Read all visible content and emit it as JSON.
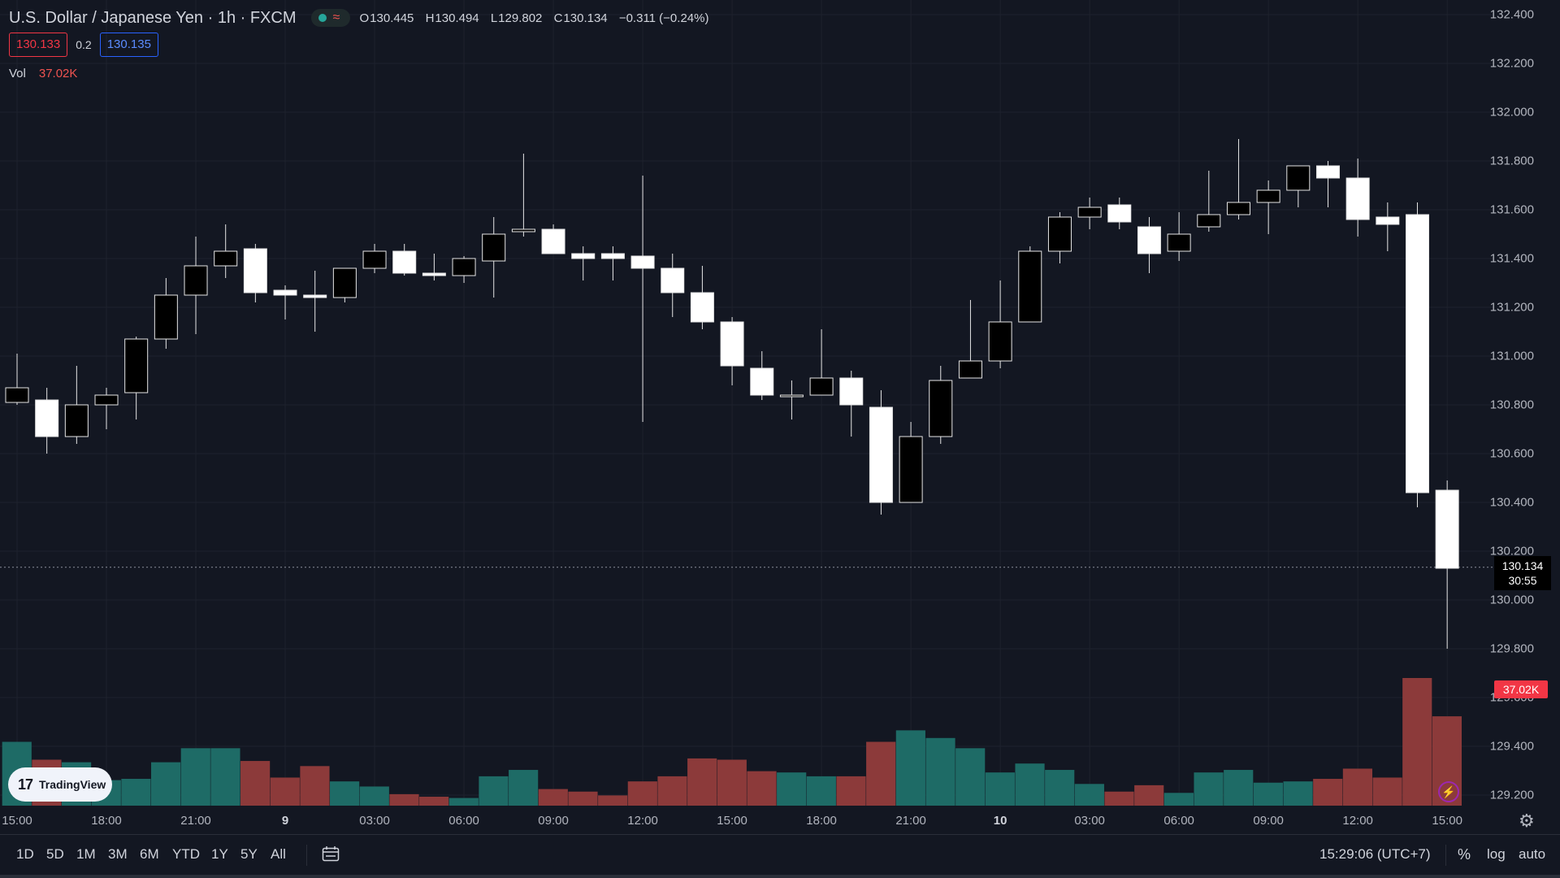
{
  "header": {
    "symbol_title": "U.S. Dollar / Japanese Yen · 1h · FXCM",
    "status_wave_glyph": "≈",
    "ohlc": {
      "o_key": "O",
      "o": "130.445",
      "h_key": "H",
      "h": "130.494",
      "l_key": "L",
      "l": "129.802",
      "c_key": "C",
      "c": "130.134",
      "change": "−0.311 (−0.24%)"
    },
    "sell_price": "130.133",
    "spread": "0.2",
    "buy_price": "130.135",
    "volume_label": "Vol",
    "volume_value": "37.02K"
  },
  "price_axis": {
    "labels": [
      "132.400",
      "132.200",
      "132.000",
      "131.800",
      "131.600",
      "131.400",
      "131.200",
      "131.000",
      "130.800",
      "130.600",
      "130.400",
      "130.200",
      "130.000",
      "129.800",
      "129.600",
      "129.400",
      "129.200"
    ],
    "last_price": "130.134",
    "countdown": "30:55",
    "volume_tag": "37.02K"
  },
  "time_axis": [
    {
      "label": "15:00",
      "bold": false
    },
    {
      "label": "18:00",
      "bold": false
    },
    {
      "label": "21:00",
      "bold": false
    },
    {
      "label": "9",
      "bold": true
    },
    {
      "label": "03:00",
      "bold": false
    },
    {
      "label": "06:00",
      "bold": false
    },
    {
      "label": "09:00",
      "bold": false
    },
    {
      "label": "12:00",
      "bold": false
    },
    {
      "label": "15:00",
      "bold": false
    },
    {
      "label": "18:00",
      "bold": false
    },
    {
      "label": "21:00",
      "bold": false
    },
    {
      "label": "10",
      "bold": true
    },
    {
      "label": "03:00",
      "bold": false
    },
    {
      "label": "06:00",
      "bold": false
    },
    {
      "label": "09:00",
      "bold": false
    },
    {
      "label": "12:00",
      "bold": false
    },
    {
      "label": "15:00",
      "bold": false
    }
  ],
  "bottom_bar": {
    "timeframes": [
      "1D",
      "5D",
      "1M",
      "3M",
      "6M",
      "YTD",
      "1Y",
      "5Y",
      "All"
    ],
    "clock": "15:29:06 (UTC+7)",
    "percent": "%",
    "log": "log",
    "auto": "auto"
  },
  "branding": {
    "mark": "17",
    "word": "TradingView"
  },
  "icons": {
    "calendar": "calendar-range-icon",
    "bolt": "lightning-bolt-icon",
    "gear": "gear-icon"
  },
  "colors": {
    "background": "#131722",
    "candle_up_fill": "#000000",
    "candle_down_fill": "#ffffff",
    "volume_up": "#1e6b66",
    "volume_down": "#8c3a3a",
    "sell": "#f23645",
    "buy": "#2962ff"
  },
  "chart_data": {
    "type": "candlestick",
    "title": "U.S. Dollar / Japanese Yen · 1h · FXCM",
    "ylim": [
      129.13,
      132.44
    ],
    "y_ticks": [
      132.4,
      132.2,
      132.0,
      131.8,
      131.6,
      131.4,
      131.2,
      131.0,
      130.8,
      130.6,
      130.4,
      130.2,
      130.0,
      129.8,
      129.6,
      129.4,
      129.2
    ],
    "x_ticks": [
      "15:00",
      "18:00",
      "21:00",
      "9",
      "03:00",
      "06:00",
      "09:00",
      "12:00",
      "15:00",
      "18:00",
      "21:00",
      "10",
      "03:00",
      "06:00",
      "09:00",
      "12:00",
      "15:00"
    ],
    "grid": true,
    "volume_max_k": 105,
    "candles": [
      {
        "o": 130.81,
        "h": 131.01,
        "l": 130.8,
        "c": 130.87,
        "v": 50
      },
      {
        "o": 130.82,
        "h": 130.87,
        "l": 130.6,
        "c": 130.67,
        "v": 36
      },
      {
        "o": 130.67,
        "h": 130.96,
        "l": 130.64,
        "c": 130.8,
        "v": 34
      },
      {
        "o": 130.8,
        "h": 130.87,
        "l": 130.7,
        "c": 130.84,
        "v": 20
      },
      {
        "o": 130.85,
        "h": 131.08,
        "l": 130.74,
        "c": 131.07,
        "v": 21
      },
      {
        "o": 131.07,
        "h": 131.32,
        "l": 131.03,
        "c": 131.25,
        "v": 34
      },
      {
        "o": 131.25,
        "h": 131.49,
        "l": 131.09,
        "c": 131.37,
        "v": 45
      },
      {
        "o": 131.37,
        "h": 131.54,
        "l": 131.32,
        "c": 131.43,
        "v": 45
      },
      {
        "o": 131.44,
        "h": 131.46,
        "l": 131.22,
        "c": 131.26,
        "v": 35
      },
      {
        "o": 131.27,
        "h": 131.29,
        "l": 131.15,
        "c": 131.25,
        "v": 22
      },
      {
        "o": 131.25,
        "h": 131.35,
        "l": 131.1,
        "c": 131.24,
        "v": 31
      },
      {
        "o": 131.24,
        "h": 131.36,
        "l": 131.22,
        "c": 131.36,
        "v": 19
      },
      {
        "o": 131.36,
        "h": 131.46,
        "l": 131.34,
        "c": 131.43,
        "v": 15
      },
      {
        "o": 131.43,
        "h": 131.46,
        "l": 131.33,
        "c": 131.34,
        "v": 9
      },
      {
        "o": 131.34,
        "h": 131.42,
        "l": 131.31,
        "c": 131.33,
        "v": 7
      },
      {
        "o": 131.33,
        "h": 131.41,
        "l": 131.3,
        "c": 131.4,
        "v": 6
      },
      {
        "o": 131.39,
        "h": 131.57,
        "l": 131.24,
        "c": 131.5,
        "v": 23
      },
      {
        "o": 131.51,
        "h": 131.83,
        "l": 131.49,
        "c": 131.52,
        "v": 28
      },
      {
        "o": 131.52,
        "h": 131.54,
        "l": 131.43,
        "c": 131.42,
        "v": 13
      },
      {
        "o": 131.42,
        "h": 131.45,
        "l": 131.31,
        "c": 131.4,
        "v": 11
      },
      {
        "o": 131.42,
        "h": 131.45,
        "l": 131.31,
        "c": 131.4,
        "v": 8
      },
      {
        "o": 131.41,
        "h": 131.74,
        "l": 130.73,
        "c": 131.36,
        "v": 19
      },
      {
        "o": 131.36,
        "h": 131.42,
        "l": 131.16,
        "c": 131.26,
        "v": 23
      },
      {
        "o": 131.26,
        "h": 131.37,
        "l": 131.11,
        "c": 131.14,
        "v": 37
      },
      {
        "o": 131.14,
        "h": 131.16,
        "l": 130.88,
        "c": 130.96,
        "v": 36
      },
      {
        "o": 130.95,
        "h": 131.02,
        "l": 130.82,
        "c": 130.84,
        "v": 27
      },
      {
        "o": 130.84,
        "h": 130.9,
        "l": 130.74,
        "c": 130.84,
        "v": 26
      },
      {
        "o": 130.84,
        "h": 131.11,
        "l": 130.85,
        "c": 130.91,
        "v": 23
      },
      {
        "o": 130.91,
        "h": 130.94,
        "l": 130.67,
        "c": 130.8,
        "v": 23
      },
      {
        "o": 130.79,
        "h": 130.86,
        "l": 130.35,
        "c": 130.4,
        "v": 50
      },
      {
        "o": 130.4,
        "h": 130.73,
        "l": 130.4,
        "c": 130.67,
        "v": 59
      },
      {
        "o": 130.67,
        "h": 130.96,
        "l": 130.64,
        "c": 130.9,
        "v": 53
      },
      {
        "o": 130.91,
        "h": 131.23,
        "l": 130.91,
        "c": 130.98,
        "v": 45
      },
      {
        "o": 130.98,
        "h": 131.31,
        "l": 130.95,
        "c": 131.14,
        "v": 26
      },
      {
        "o": 131.14,
        "h": 131.45,
        "l": 131.14,
        "c": 131.43,
        "v": 33
      },
      {
        "o": 131.43,
        "h": 131.59,
        "l": 131.38,
        "c": 131.57,
        "v": 28
      },
      {
        "o": 131.57,
        "h": 131.65,
        "l": 131.52,
        "c": 131.61,
        "v": 17
      },
      {
        "o": 131.62,
        "h": 131.65,
        "l": 131.52,
        "c": 131.55,
        "v": 11
      },
      {
        "o": 131.53,
        "h": 131.57,
        "l": 131.34,
        "c": 131.42,
        "v": 16
      },
      {
        "o": 131.43,
        "h": 131.59,
        "l": 131.39,
        "c": 131.5,
        "v": 10
      },
      {
        "o": 131.53,
        "h": 131.76,
        "l": 131.51,
        "c": 131.58,
        "v": 26
      },
      {
        "o": 131.58,
        "h": 131.89,
        "l": 131.56,
        "c": 131.63,
        "v": 28
      },
      {
        "o": 131.63,
        "h": 131.72,
        "l": 131.5,
        "c": 131.68,
        "v": 18
      },
      {
        "o": 131.68,
        "h": 131.77,
        "l": 131.61,
        "c": 131.78,
        "v": 19
      },
      {
        "o": 131.78,
        "h": 131.8,
        "l": 131.61,
        "c": 131.73,
        "v": 21
      },
      {
        "o": 131.73,
        "h": 131.81,
        "l": 131.49,
        "c": 131.56,
        "v": 29
      },
      {
        "o": 131.57,
        "h": 131.63,
        "l": 131.43,
        "c": 131.54,
        "v": 22
      },
      {
        "o": 131.58,
        "h": 131.63,
        "l": 130.38,
        "c": 130.44,
        "v": 100
      },
      {
        "o": 130.45,
        "h": 130.49,
        "l": 129.8,
        "c": 130.13,
        "v": 70
      }
    ]
  }
}
